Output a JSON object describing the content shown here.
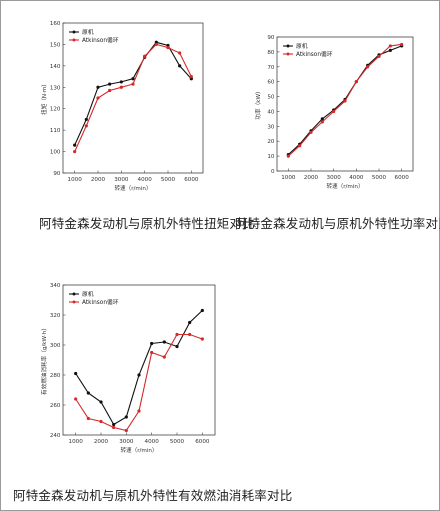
{
  "colors": {
    "original": "#111111",
    "atkinson": "#d42a2a"
  },
  "legend": {
    "original": "原机",
    "atkinson": "Atkinson循环"
  },
  "chart_data": [
    {
      "type": "line",
      "caption": "阿特金森发动机与原机外特性扭矩对比",
      "xlabel": "转速（r/min）",
      "ylabel": "扭矩（N·m）",
      "xlim": [
        500,
        6500
      ],
      "ylim": [
        90,
        160
      ],
      "xticks": [
        1000,
        2000,
        3000,
        4000,
        5000,
        6000
      ],
      "yticks": [
        90,
        100,
        110,
        120,
        130,
        140,
        150,
        160
      ],
      "series": [
        {
          "name": "原机",
          "x": [
            1000,
            1500,
            2000,
            2500,
            3000,
            3500,
            4000,
            4500,
            5000,
            5500,
            6000
          ],
          "values": [
            103,
            115,
            130,
            131.5,
            132.5,
            134,
            144,
            151,
            149.5,
            140,
            134
          ]
        },
        {
          "name": "Atkinson循环",
          "x": [
            1000,
            1500,
            2000,
            2500,
            3000,
            3500,
            4000,
            4500,
            5000,
            5500,
            6000
          ],
          "values": [
            100,
            112,
            125,
            128.5,
            130,
            131.5,
            144.5,
            150,
            148.5,
            146,
            135
          ]
        }
      ]
    },
    {
      "type": "line",
      "caption": "阿特金森发动机与原机外特性功率对比",
      "xlabel": "转速（r/min）",
      "ylabel": "功率（kW）",
      "xlim": [
        500,
        6500
      ],
      "ylim": [
        0,
        90
      ],
      "xticks": [
        1000,
        2000,
        3000,
        4000,
        5000,
        6000
      ],
      "yticks": [
        0,
        10,
        20,
        30,
        40,
        50,
        60,
        70,
        80,
        90
      ],
      "series": [
        {
          "name": "原机",
          "x": [
            1000,
            1500,
            2000,
            2500,
            3000,
            3500,
            4000,
            4500,
            5000,
            5500,
            6000
          ],
          "values": [
            11,
            18,
            27,
            35,
            41,
            48,
            60,
            71,
            78,
            81,
            84
          ]
        },
        {
          "name": "Atkinson循环",
          "x": [
            1000,
            1500,
            2000,
            2500,
            3000,
            3500,
            4000,
            4500,
            5000,
            5500,
            6000
          ],
          "values": [
            10,
            17,
            26,
            33,
            40,
            47,
            60,
            70,
            77,
            84,
            85
          ]
        }
      ]
    },
    {
      "type": "line",
      "caption": "阿特金森发动机与原机外特性有效燃油消耗率对比",
      "xlabel": "转速（r/min）",
      "ylabel": "有效燃油消耗率（g/kW·h）",
      "xlim": [
        500,
        6500
      ],
      "ylim": [
        240,
        340
      ],
      "xticks": [
        1000,
        2000,
        3000,
        4000,
        5000,
        6000
      ],
      "yticks": [
        240,
        260,
        280,
        300,
        320,
        340
      ],
      "series": [
        {
          "name": "原机",
          "x": [
            1000,
            1500,
            2000,
            2500,
            3000,
            3500,
            4000,
            4500,
            5000,
            5500,
            6000
          ],
          "values": [
            281,
            268,
            262,
            247,
            252,
            280,
            301,
            302,
            299,
            315,
            323
          ]
        },
        {
          "name": "Atkinson循环",
          "x": [
            1000,
            1500,
            2000,
            2500,
            3000,
            3500,
            4000,
            4500,
            5000,
            5500,
            6000
          ],
          "values": [
            264,
            251,
            249,
            245,
            243,
            256,
            295,
            292,
            307,
            307,
            304
          ]
        }
      ]
    }
  ]
}
